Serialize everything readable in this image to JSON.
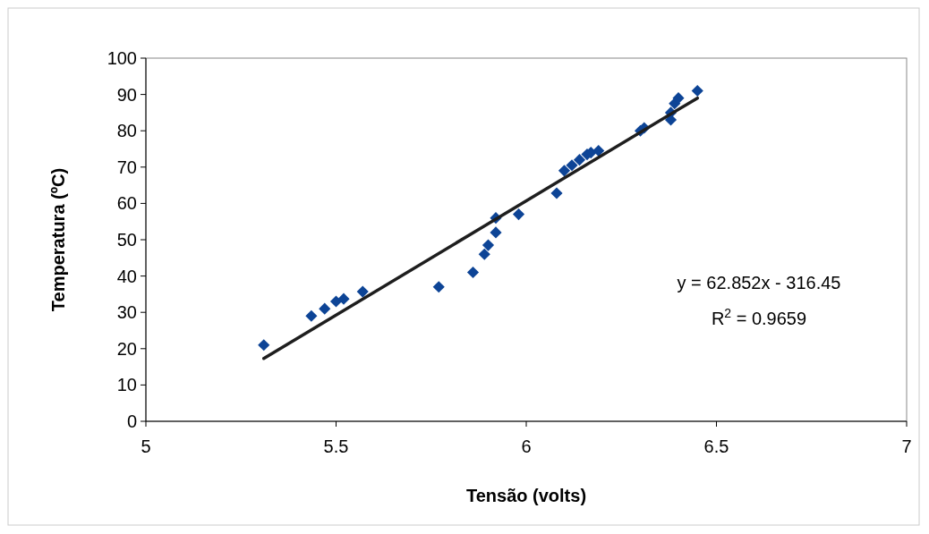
{
  "chart_data": {
    "type": "scatter",
    "xlabel": "Tensão (volts)",
    "ylabel": "Temperatura (ºC)",
    "xlim": [
      5,
      7
    ],
    "xticks": [
      5,
      5.5,
      6,
      6.5,
      7
    ],
    "ylim": [
      0,
      100
    ],
    "yticks": [
      0,
      10,
      20,
      30,
      40,
      50,
      60,
      70,
      80,
      90,
      100
    ],
    "grid": false,
    "series": [
      {
        "marker": "diamond",
        "color": "#0d4496",
        "x": [
          5.31,
          5.435,
          5.47,
          5.5,
          5.52,
          5.57,
          5.77,
          5.86,
          5.89,
          5.9,
          5.92,
          5.92,
          5.98,
          6.08,
          6.1,
          6.12,
          6.14,
          6.16,
          6.17,
          6.19,
          6.3,
          6.31,
          6.38,
          6.38,
          6.39,
          6.4,
          6.45
        ],
        "values": [
          21,
          29,
          31,
          33,
          33.7,
          35.7,
          37,
          41,
          46,
          48.5,
          52,
          56,
          57,
          62.8,
          69,
          70.5,
          72,
          73.5,
          74,
          74.5,
          80,
          80.8,
          83,
          85,
          87.5,
          89,
          91
        ]
      },
      {
        "type": "line",
        "color": "#1e1e1e",
        "x": [
          5.31,
          6.45
        ],
        "values": [
          17.3,
          89
        ]
      }
    ],
    "annotations": [
      "y = 62.852x - 316.45",
      "R$^{2}$ = 0.9659"
    ]
  }
}
